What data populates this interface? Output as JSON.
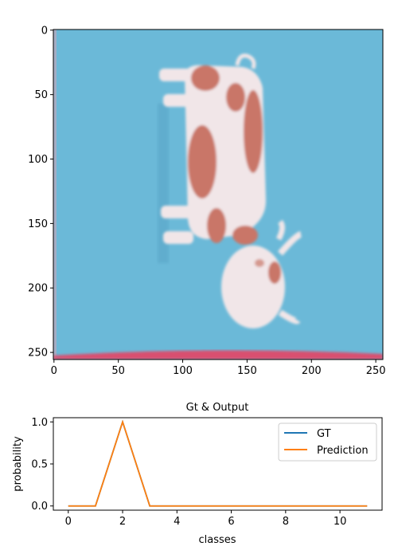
{
  "colors": {
    "sky": "#6bb9d8",
    "cow_body": "#f1e6e8",
    "cow_spot": "#c97668",
    "ground": "#d9506f",
    "gt_line": "#1f77b4",
    "pred_line": "#ff7f0e"
  },
  "image_panel": {
    "x_ticks": [
      "0",
      "50",
      "100",
      "150",
      "200",
      "250"
    ],
    "y_ticks": [
      "0",
      "50",
      "100",
      "150",
      "200",
      "250"
    ]
  },
  "chart_data": {
    "type": "line",
    "title": "Gt & Output",
    "xlabel": "classes",
    "ylabel": "probability",
    "x": [
      0,
      1,
      2,
      3,
      4,
      5,
      6,
      7,
      8,
      9,
      10,
      11
    ],
    "xlim": [
      -0.55,
      11.55
    ],
    "ylim": [
      -0.05,
      1.05
    ],
    "x_ticks": [
      0,
      2,
      4,
      6,
      8,
      10
    ],
    "y_ticks": [
      0.0,
      0.5,
      1.0
    ],
    "x_tick_labels": [
      "0",
      "2",
      "4",
      "6",
      "8",
      "10"
    ],
    "y_tick_labels": [
      "0.0",
      "0.5",
      "1.0"
    ],
    "grid": false,
    "legend_placement": "upper right",
    "series": [
      {
        "name": "GT",
        "color": "#1f77b4",
        "values": [
          0,
          0,
          1,
          0,
          0,
          0,
          0,
          0,
          0,
          0,
          0,
          0
        ]
      },
      {
        "name": "Prediction",
        "color": "#ff7f0e",
        "values": [
          0,
          0,
          1,
          0,
          0,
          0,
          0,
          0,
          0,
          0,
          0,
          0
        ]
      }
    ]
  }
}
